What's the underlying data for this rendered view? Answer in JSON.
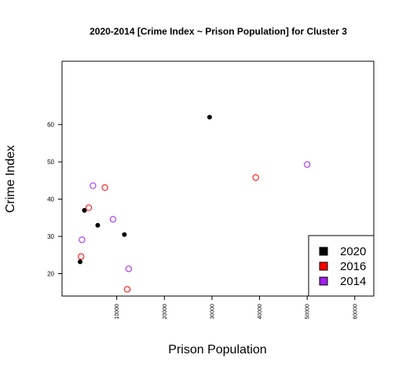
{
  "chart_data": {
    "type": "scatter",
    "title": "2020-2014 [Crime Index ~ Prison Population] for Cluster 3",
    "xlabel": "Prison Population",
    "ylabel": "Crime Index",
    "xlim": [
      -1500,
      64000
    ],
    "ylim": [
      14,
      77
    ],
    "x_ticks": [
      10000,
      20000,
      30000,
      40000,
      50000,
      60000
    ],
    "y_ticks": [
      20,
      30,
      40,
      50,
      60
    ],
    "grid": false,
    "legend_position": "bottom-right",
    "series": [
      {
        "name": "2020",
        "color": "#000000",
        "marker": "filled-circle",
        "points": [
          {
            "x": 29500,
            "y": 62.0
          },
          {
            "x": 3200,
            "y": 37.0
          },
          {
            "x": 6000,
            "y": 33.0
          },
          {
            "x": 11600,
            "y": 30.5
          },
          {
            "x": 2300,
            "y": 23.2
          }
        ]
      },
      {
        "name": "2016",
        "color": "#ff0000",
        "marker": "open-circle",
        "points": [
          {
            "x": 39200,
            "y": 45.8
          },
          {
            "x": 7500,
            "y": 43.1
          },
          {
            "x": 4100,
            "y": 37.7
          },
          {
            "x": 2500,
            "y": 24.6
          },
          {
            "x": 12200,
            "y": 15.8
          }
        ]
      },
      {
        "name": "2014",
        "color": "#a020f0",
        "marker": "open-circle",
        "points": [
          {
            "x": 50000,
            "y": 49.3
          },
          {
            "x": 5000,
            "y": 43.6
          },
          {
            "x": 9200,
            "y": 34.6
          },
          {
            "x": 2700,
            "y": 29.1
          },
          {
            "x": 12500,
            "y": 21.3
          }
        ]
      }
    ]
  }
}
